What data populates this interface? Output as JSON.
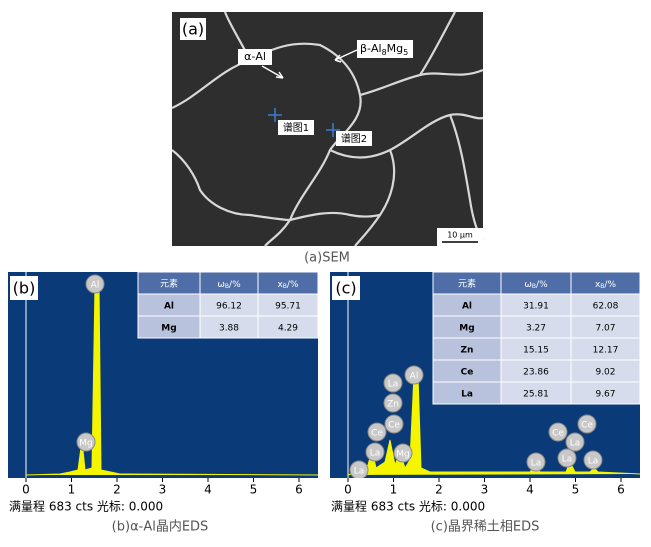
{
  "panel_a": {
    "label": "(a)",
    "alpha": "α-Al",
    "beta": [
      "β-Al",
      "8",
      "Mg",
      "5"
    ],
    "spectrum_1": "谱图1",
    "spectrum_2": "谱图2",
    "scale_bar": "10 μm",
    "caption": "(a)SEM"
  },
  "panel_b": {
    "label": "(b)",
    "headers": [
      "元素",
      [
        "ω",
        "B",
        "/%"
      ],
      [
        "x",
        "B",
        "/%"
      ]
    ],
    "rows": [
      [
        "Al",
        "96.12",
        "95.71"
      ],
      [
        "Mg",
        "3.88",
        "4.29"
      ]
    ],
    "peak_labels": [
      "Al",
      "Mg"
    ],
    "xticks": [
      0,
      1,
      2,
      3,
      4,
      5,
      6
    ],
    "footer": "满量程 683 cts 光标: 0.000",
    "caption": "(b)α-Al晶内EDS"
  },
  "panel_c": {
    "label": "(c)",
    "headers": [
      "元素",
      [
        "ω",
        "B",
        "/%"
      ],
      [
        "x",
        "B",
        "/%"
      ]
    ],
    "rows": [
      [
        "Al",
        "31.91",
        "62.08"
      ],
      [
        "Mg",
        "3.27",
        "7.07"
      ],
      [
        "Zn",
        "15.15",
        "12.17"
      ],
      [
        "Ce",
        "23.86",
        "9.02"
      ],
      [
        "La",
        "25.81",
        "9.67"
      ]
    ],
    "peak_labels": [
      "La",
      "Al",
      "Zn",
      "Ce",
      "Ce",
      "La",
      "Mg",
      "La",
      "La",
      "Ce",
      "La",
      "Ce",
      "La",
      "La"
    ],
    "xticks": [
      0,
      1,
      2,
      3,
      4,
      5,
      6
    ],
    "footer": "满量程 683 cts 光标: 0.000",
    "caption": "(c)晶界稀土相EDS"
  }
}
